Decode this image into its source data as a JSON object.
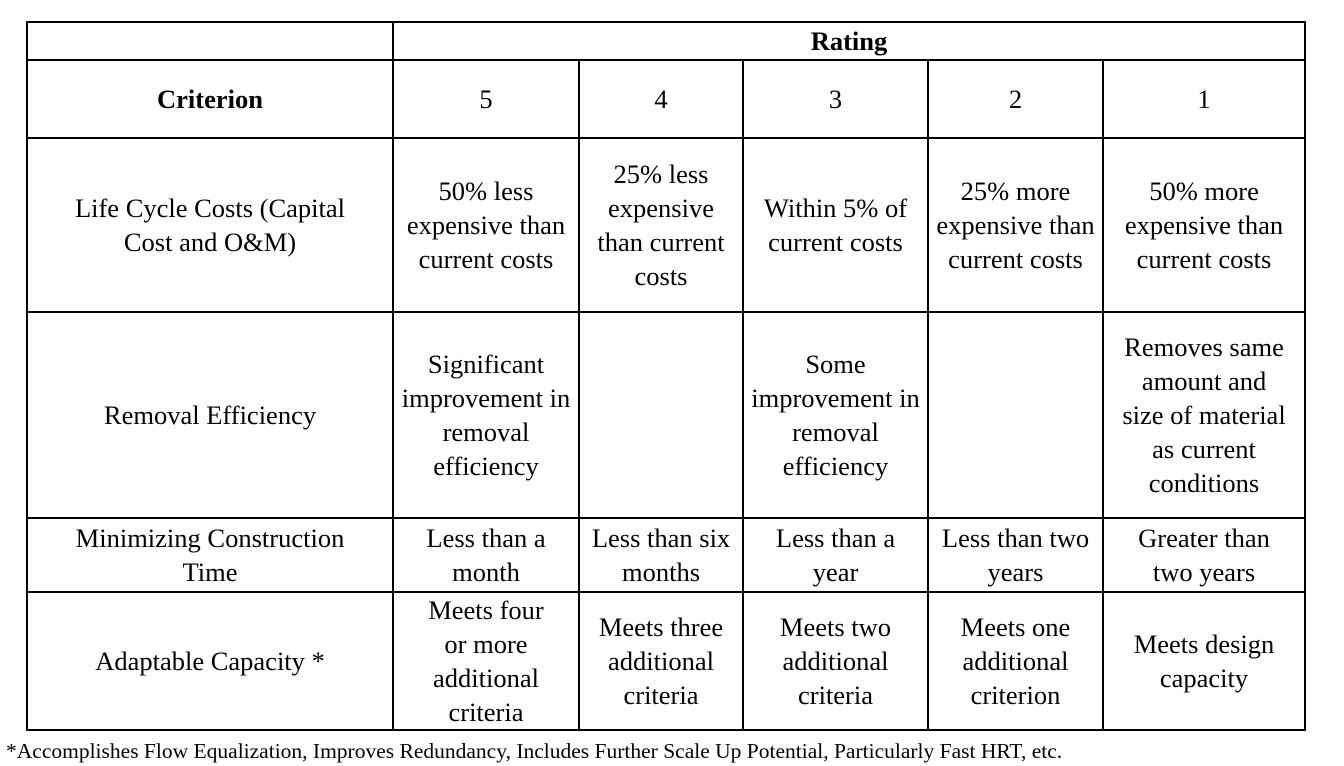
{
  "table": {
    "rating_header": "Rating",
    "criterion_header": "Criterion",
    "ratings": [
      "5",
      "4",
      "3",
      "2",
      "1"
    ],
    "rows": [
      {
        "criterion": "Life Cycle Costs (Capital Cost and O&M)",
        "cells": [
          "50% less expensive than current costs",
          "25% less expensive than current costs",
          "Within 5% of current costs",
          "25% more expensive than current costs",
          "50% more expensive than current costs"
        ]
      },
      {
        "criterion": "Removal Efficiency",
        "cells": [
          "Significant improvement in removal efficiency",
          "",
          "Some improvement in removal efficiency",
          "",
          "Removes same amount and size of material as current conditions"
        ]
      },
      {
        "criterion": "Minimizing Construction Time",
        "cells": [
          "Less than a month",
          "Less than six months",
          "Less than a year",
          "Less than two years",
          "Greater than two years"
        ]
      },
      {
        "criterion": "Adaptable Capacity *",
        "cells": [
          "Meets four or more additional criteria",
          "Meets three additional criteria",
          "Meets two additional criteria",
          "Meets one additional criterion",
          "Meets design capacity"
        ]
      }
    ]
  },
  "footnote": "*Accomplishes Flow Equalization, Improves Redundancy, Includes Further Scale Up Potential, Particularly Fast HRT, etc."
}
